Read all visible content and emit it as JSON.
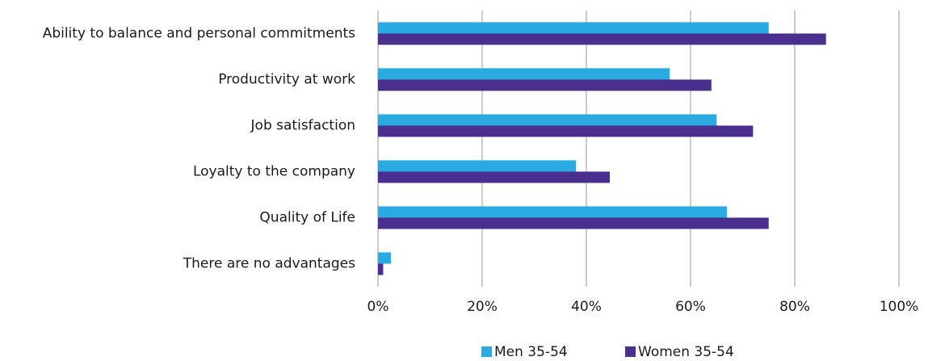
{
  "chart_data": {
    "type": "bar",
    "orientation": "horizontal",
    "categories": [
      "Ability to balance and personal commitments",
      "Productivity at work",
      "Job satisfaction",
      "Loyalty to the company",
      "Quality of Life",
      "There are no advantages"
    ],
    "series": [
      {
        "name": "Men 35-54",
        "color": "#29abe2",
        "values": [
          75,
          56,
          65,
          38,
          67,
          2.5
        ]
      },
      {
        "name": "Women 35-54",
        "color": "#4b2f8f",
        "values": [
          86,
          64,
          72,
          44.5,
          75,
          1
        ]
      }
    ],
    "xlim": [
      0,
      100
    ],
    "xticks": [
      {
        "value": 0,
        "label": "0%"
      },
      {
        "value": 20,
        "label": "20%"
      },
      {
        "value": 40,
        "label": "40%"
      },
      {
        "value": 60,
        "label": "60%"
      },
      {
        "value": 80,
        "label": "80%"
      },
      {
        "value": 100,
        "label": "100%"
      }
    ],
    "grid": true,
    "legend": "bottom"
  }
}
